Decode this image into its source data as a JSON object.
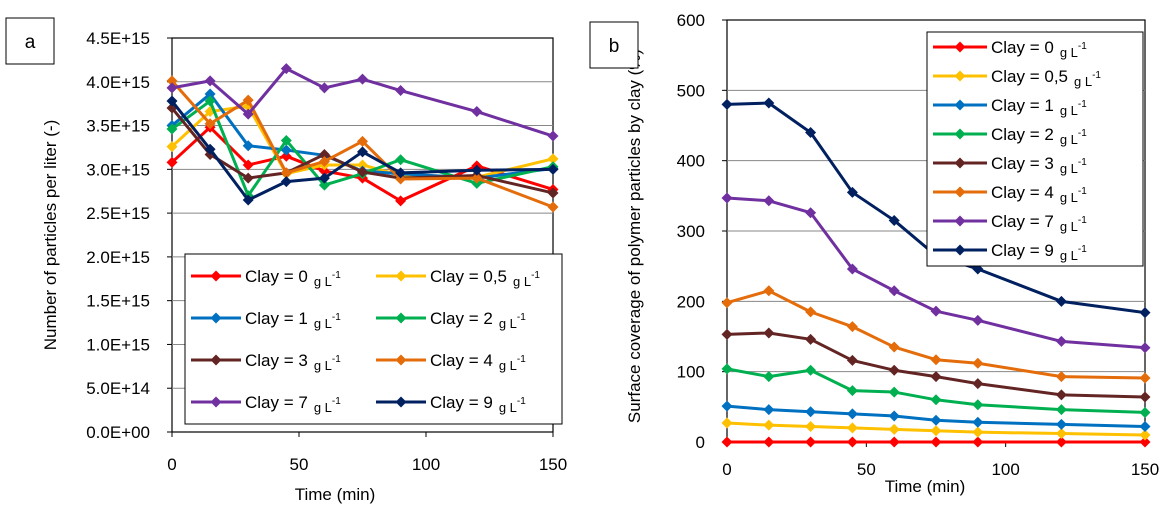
{
  "chart_data": [
    {
      "type": "line",
      "panel_label": "a",
      "xlabel": "Time (min)",
      "ylabel": "Number of particles per liter (-)",
      "xlim": [
        0,
        150
      ],
      "ylim": [
        0,
        4500000000000000.0
      ],
      "x_ticks": [
        "0",
        "50",
        "100",
        "150"
      ],
      "y_ticks": [
        "0.0E+00",
        "5.0E+14",
        "1.0E+15",
        "1.5E+15",
        "2.0E+15",
        "2.5E+15",
        "3.0E+15",
        "3.5E+15",
        "4.0E+15",
        "4.5E+15"
      ],
      "grid": "horizontal",
      "legend_position": "bottom-right",
      "x": [
        0,
        15,
        30,
        45,
        60,
        75,
        90,
        120,
        150
      ],
      "series": [
        {
          "name": "Clay = 0",
          "unit_text": "g L",
          "unit_exp": "-1",
          "color": "#ff0000",
          "values": [
            3080000000000000.0,
            3480000000000000.0,
            3050000000000000.0,
            3150000000000000.0,
            2980000000000000.0,
            2900000000000000.0,
            2640000000000000.0,
            3040000000000000.0,
            2770000000000000.0
          ]
        },
        {
          "name": "Clay = 0,5",
          "unit_text": "g L",
          "unit_exp": "-1",
          "color": "#ffc000",
          "values": [
            3260000000000000.0,
            3660000000000000.0,
            3720000000000000.0,
            2950000000000000.0,
            3050000000000000.0,
            3050000000000000.0,
            2930000000000000.0,
            2910000000000000.0,
            3120000000000000.0
          ]
        },
        {
          "name": "Clay = 1",
          "unit_text": "g L",
          "unit_exp": "-1",
          "color": "#0070c0",
          "values": [
            3500000000000000.0,
            3860000000000000.0,
            3270000000000000.0,
            3220000000000000.0,
            3160000000000000.0,
            2980000000000000.0,
            2950000000000000.0,
            2900000000000000.0,
            3010000000000000.0
          ]
        },
        {
          "name": "Clay = 2",
          "unit_text": "g L",
          "unit_exp": "-1",
          "color": "#00b050",
          "values": [
            3460000000000000.0,
            3780000000000000.0,
            2700000000000000.0,
            3330000000000000.0,
            2820000000000000.0,
            2950000000000000.0,
            3110000000000000.0,
            2840000000000000.0,
            3030000000000000.0
          ]
        },
        {
          "name": "Clay = 3",
          "unit_text": "g L",
          "unit_exp": "-1",
          "color": "#632523",
          "values": [
            3700000000000000.0,
            3170000000000000.0,
            2900000000000000.0,
            2960000000000000.0,
            3170000000000000.0,
            2970000000000000.0,
            2900000000000000.0,
            2930000000000000.0,
            2730000000000000.0
          ]
        },
        {
          "name": "Clay = 4",
          "unit_text": "g L",
          "unit_exp": "-1",
          "color": "#e46c0a",
          "values": [
            4010000000000000.0,
            3520000000000000.0,
            3790000000000000.0,
            2960000000000000.0,
            3090000000000000.0,
            3320000000000000.0,
            2890000000000000.0,
            2900000000000000.0,
            2570000000000000.0
          ]
        },
        {
          "name": "Clay = 7",
          "unit_text": "g L",
          "unit_exp": "-1",
          "color": "#7030a0",
          "values": [
            3930000000000000.0,
            4010000000000000.0,
            3630000000000000.0,
            4150000000000000.0,
            3930000000000000.0,
            4030000000000000.0,
            3900000000000000.0,
            3660000000000000.0,
            3380000000000000.0
          ]
        },
        {
          "name": "Clay = 9",
          "unit_text": "g L",
          "unit_exp": "-1",
          "color": "#002060",
          "values": [
            3780000000000000.0,
            3230000000000000.0,
            2650000000000000.0,
            2860000000000000.0,
            2900000000000000.0,
            3200000000000000.0,
            2960000000000000.0,
            2990000000000000.0,
            3000000000000000.0
          ]
        }
      ]
    },
    {
      "type": "line",
      "panel_label": "b",
      "xlabel": "Time (min)",
      "ylabel": "Surface coverage of polymer particles by clay (%)",
      "xlim": [
        0,
        150
      ],
      "ylim": [
        0,
        600
      ],
      "x_ticks": [
        "0",
        "50",
        "100",
        "150"
      ],
      "y_ticks": [
        "0",
        "100",
        "200",
        "300",
        "400",
        "500",
        "600"
      ],
      "grid": "horizontal",
      "legend_position": "top-right",
      "x": [
        0,
        15,
        30,
        45,
        60,
        75,
        90,
        120,
        150
      ],
      "series": [
        {
          "name": "Clay = 0",
          "unit_text": "g L",
          "unit_exp": "-1",
          "color": "#ff0000",
          "values": [
            0,
            0,
            0,
            0,
            0,
            0,
            0,
            0,
            0
          ]
        },
        {
          "name": "Clay = 0,5",
          "unit_text": "g L",
          "unit_exp": "-1",
          "color": "#ffc000",
          "values": [
            27,
            24,
            22,
            20,
            18,
            16,
            14,
            12,
            10
          ]
        },
        {
          "name": "Clay = 1",
          "unit_text": "g L",
          "unit_exp": "-1",
          "color": "#0070c0",
          "values": [
            51,
            46,
            43,
            40,
            37,
            31,
            28,
            25,
            22
          ]
        },
        {
          "name": "Clay = 2",
          "unit_text": "g L",
          "unit_exp": "-1",
          "color": "#00b050",
          "values": [
            104,
            93,
            102,
            73,
            71,
            60,
            53,
            46,
            42
          ]
        },
        {
          "name": "Clay = 3",
          "unit_text": "g L",
          "unit_exp": "-1",
          "color": "#632523",
          "values": [
            153,
            155,
            146,
            116,
            102,
            93,
            83,
            67,
            64
          ]
        },
        {
          "name": "Clay = 4",
          "unit_text": "g L",
          "unit_exp": "-1",
          "color": "#e46c0a",
          "values": [
            198,
            215,
            185,
            164,
            135,
            117,
            112,
            93,
            91
          ]
        },
        {
          "name": "Clay = 7",
          "unit_text": "g L",
          "unit_exp": "-1",
          "color": "#7030a0",
          "values": [
            347,
            343,
            326,
            246,
            215,
            186,
            173,
            143,
            134
          ]
        },
        {
          "name": "Clay = 9",
          "unit_text": "g L",
          "unit_exp": "-1",
          "color": "#002060",
          "values": [
            480,
            482,
            440,
            355,
            315,
            265,
            246,
            200,
            184
          ]
        }
      ]
    }
  ]
}
